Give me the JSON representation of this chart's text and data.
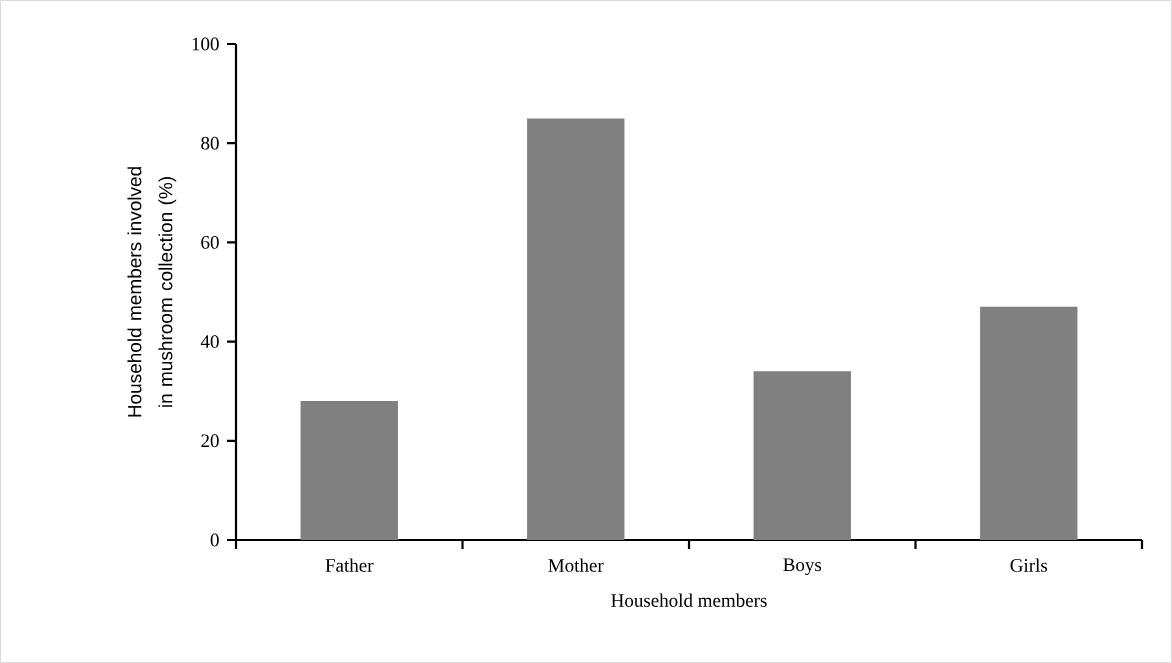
{
  "chart_data": {
    "type": "bar",
    "xlabel": "Household members",
    "ylabel": "Household members involved in mushroom collection (%)",
    "categories": [
      "Father",
      "Mother",
      "Boys",
      "Girls"
    ],
    "values": [
      28,
      85,
      34,
      47
    ],
    "color": "#808080",
    "ylim": [
      0,
      100
    ],
    "yticks": [
      0,
      20,
      40,
      60,
      80,
      100
    ],
    "grid": false
  }
}
